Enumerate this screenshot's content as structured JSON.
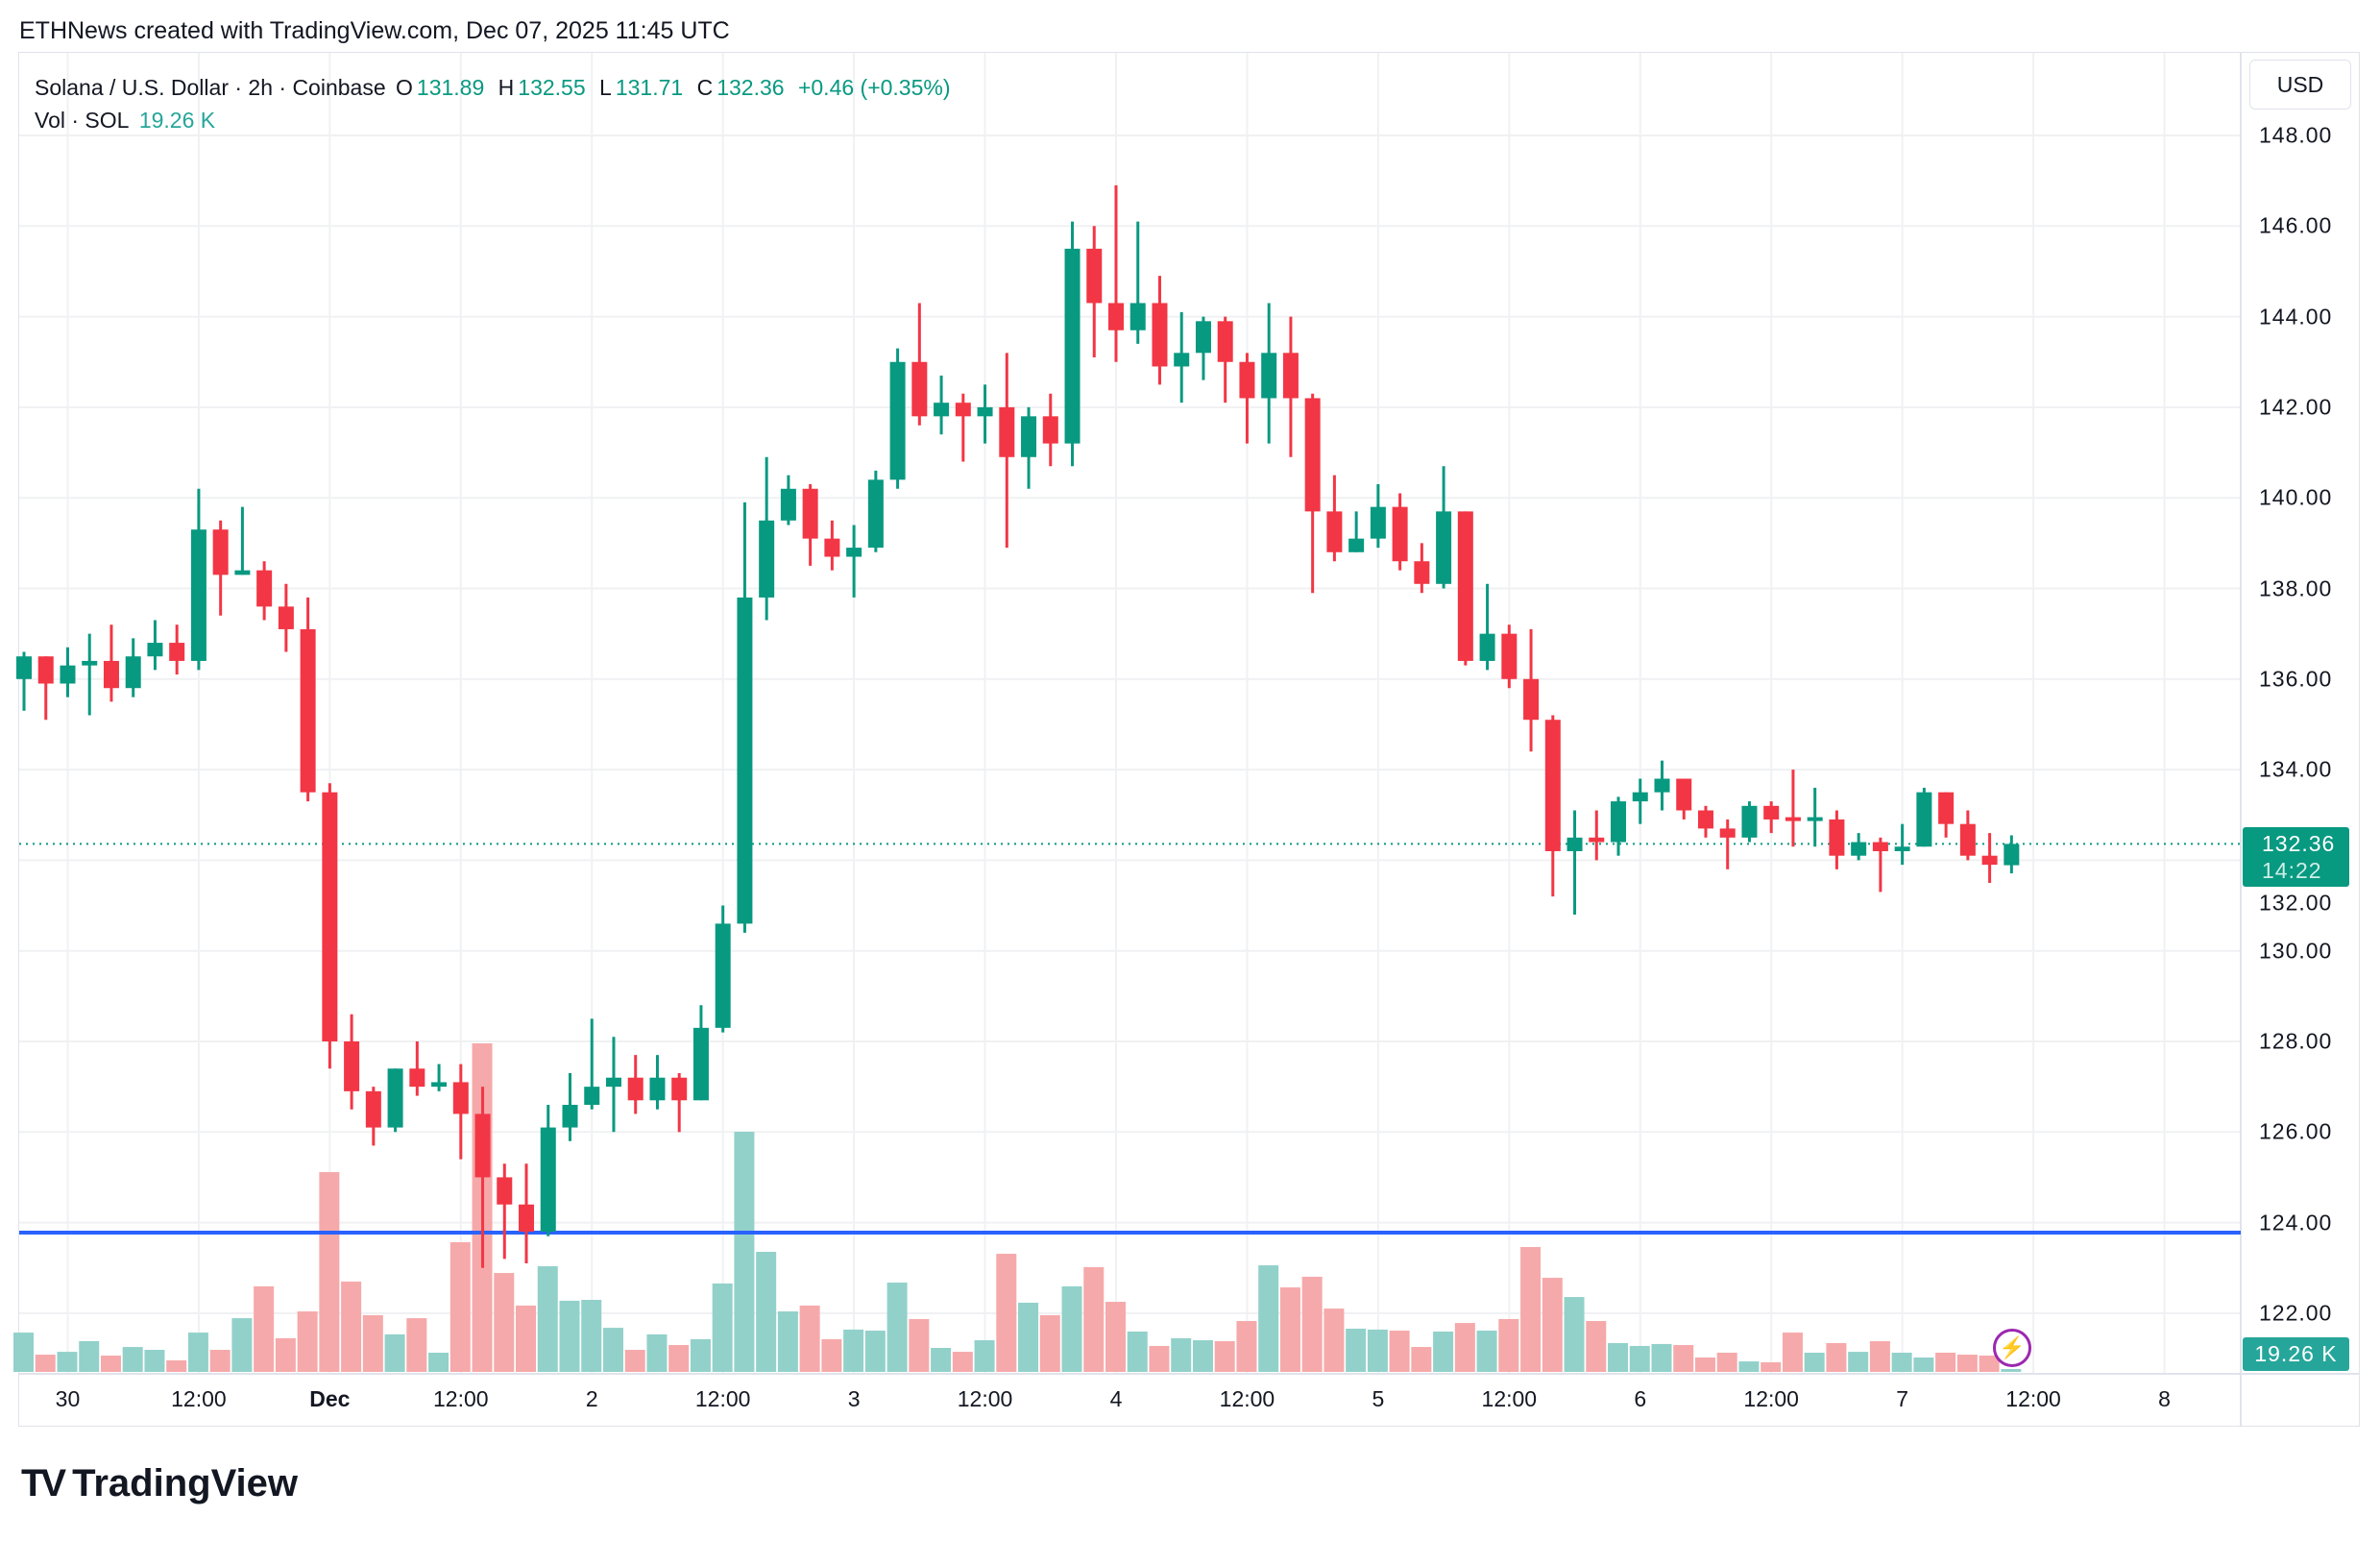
{
  "credit": "ETHNews created with TradingView.com, Dec 07, 2025 11:45 UTC",
  "legend": {
    "symbol": "Solana / U.S. Dollar · 2h · Coinbase",
    "o_label": "O",
    "o": "131.89",
    "h_label": "H",
    "h": "132.55",
    "l_label": "L",
    "l": "131.71",
    "c_label": "C",
    "c": "132.36",
    "change": "+0.46 (+0.35%)",
    "vol_label": "Vol · SOL",
    "vol": "19.26 K"
  },
  "currency_button": "USD",
  "current_price": {
    "price": "132.36",
    "countdown": "14:22"
  },
  "current_volume": "19.26 K",
  "brand": "TradingView",
  "colors": {
    "up": "#089981",
    "down": "#f23645",
    "vol_up": "#92d1ca",
    "vol_down": "#f6a9aa",
    "support_line": "#2962ff",
    "grid": "#f0f1f3"
  },
  "chart_data": {
    "type": "candlestick",
    "title": "Solana / U.S. Dollar · 2h · Coinbase",
    "ylim": [
      121,
      149
    ],
    "y_ticks": [
      "148.00",
      "146.00",
      "144.00",
      "142.00",
      "140.00",
      "138.00",
      "136.00",
      "134.00",
      "132.00",
      "130.00",
      "128.00",
      "126.00",
      "124.00",
      "122.00"
    ],
    "x_ticks": [
      {
        "label": "30",
        "bold": false
      },
      {
        "label": "12:00",
        "bold": false
      },
      {
        "label": "Dec",
        "bold": true
      },
      {
        "label": "12:00",
        "bold": false
      },
      {
        "label": "2",
        "bold": false
      },
      {
        "label": "12:00",
        "bold": false
      },
      {
        "label": "3",
        "bold": false
      },
      {
        "label": "12:00",
        "bold": false
      },
      {
        "label": "4",
        "bold": false
      },
      {
        "label": "12:00",
        "bold": false
      },
      {
        "label": "5",
        "bold": false
      },
      {
        "label": "12:00",
        "bold": false
      },
      {
        "label": "6",
        "bold": false
      },
      {
        "label": "12:00",
        "bold": false
      },
      {
        "label": "7",
        "bold": false
      },
      {
        "label": "12:00",
        "bold": false
      },
      {
        "label": "8",
        "bold": false
      }
    ],
    "first_candle_offset_from_first_tick": -2,
    "candles_per_tick": 6,
    "support_level": 123.78,
    "last_price": 132.36,
    "ohlc": [
      [
        136.0,
        136.6,
        135.3,
        136.5
      ],
      [
        136.5,
        136.5,
        135.1,
        135.9
      ],
      [
        135.9,
        136.7,
        135.6,
        136.3
      ],
      [
        136.3,
        137.0,
        135.2,
        136.4
      ],
      [
        136.4,
        137.2,
        135.5,
        135.8
      ],
      [
        135.8,
        136.9,
        135.6,
        136.5
      ],
      [
        136.5,
        137.3,
        136.2,
        136.8
      ],
      [
        136.8,
        137.2,
        136.1,
        136.4
      ],
      [
        136.4,
        140.2,
        136.2,
        139.3
      ],
      [
        139.3,
        139.5,
        137.4,
        138.3
      ],
      [
        138.3,
        139.8,
        138.3,
        138.4
      ],
      [
        138.4,
        138.6,
        137.3,
        137.6
      ],
      [
        137.6,
        138.1,
        136.6,
        137.1
      ],
      [
        137.1,
        137.8,
        133.3,
        133.5
      ],
      [
        133.5,
        133.7,
        127.4,
        128.0
      ],
      [
        128.0,
        128.6,
        126.5,
        126.9
      ],
      [
        126.9,
        127.0,
        125.7,
        126.1
      ],
      [
        126.1,
        127.4,
        126.0,
        127.4
      ],
      [
        127.4,
        128.0,
        126.8,
        127.0
      ],
      [
        127.0,
        127.5,
        126.9,
        127.1
      ],
      [
        127.1,
        127.5,
        125.4,
        126.4
      ],
      [
        126.4,
        127.0,
        123.0,
        125.0
      ],
      [
        125.0,
        125.3,
        123.2,
        124.4
      ],
      [
        124.4,
        125.3,
        123.1,
        123.8
      ],
      [
        123.8,
        126.6,
        123.7,
        126.1
      ],
      [
        126.1,
        127.3,
        125.8,
        126.6
      ],
      [
        126.6,
        128.5,
        126.5,
        127.0
      ],
      [
        127.0,
        128.1,
        126.0,
        127.2
      ],
      [
        127.2,
        127.7,
        126.4,
        126.7
      ],
      [
        126.7,
        127.7,
        126.5,
        127.2
      ],
      [
        127.2,
        127.3,
        126.0,
        126.7
      ],
      [
        126.7,
        128.8,
        126.7,
        128.3
      ],
      [
        128.3,
        131.0,
        128.2,
        130.6
      ],
      [
        130.6,
        139.9,
        130.4,
        137.8
      ],
      [
        137.8,
        140.9,
        137.3,
        139.5
      ],
      [
        139.5,
        140.5,
        139.4,
        140.2
      ],
      [
        140.2,
        140.3,
        138.5,
        139.1
      ],
      [
        139.1,
        139.5,
        138.4,
        138.7
      ],
      [
        138.7,
        139.4,
        137.8,
        138.9
      ],
      [
        138.9,
        140.6,
        138.8,
        140.4
      ],
      [
        140.4,
        143.3,
        140.2,
        143.0
      ],
      [
        143.0,
        144.3,
        141.6,
        141.8
      ],
      [
        141.8,
        142.7,
        141.4,
        142.1
      ],
      [
        142.1,
        142.3,
        140.8,
        141.8
      ],
      [
        141.8,
        142.5,
        141.2,
        142.0
      ],
      [
        142.0,
        143.2,
        138.9,
        140.9
      ],
      [
        140.9,
        142.0,
        140.2,
        141.8
      ],
      [
        141.8,
        142.3,
        140.7,
        141.2
      ],
      [
        141.2,
        146.1,
        140.7,
        145.5
      ],
      [
        145.5,
        146.0,
        143.1,
        144.3
      ],
      [
        144.3,
        146.9,
        143.0,
        143.7
      ],
      [
        143.7,
        146.1,
        143.4,
        144.3
      ],
      [
        144.3,
        144.9,
        142.5,
        142.9
      ],
      [
        142.9,
        144.1,
        142.1,
        143.2
      ],
      [
        143.2,
        144.0,
        142.6,
        143.9
      ],
      [
        143.9,
        144.0,
        142.1,
        143.0
      ],
      [
        143.0,
        143.2,
        141.2,
        142.2
      ],
      [
        142.2,
        144.3,
        141.2,
        143.2
      ],
      [
        143.2,
        144.0,
        140.9,
        142.2
      ],
      [
        142.2,
        142.3,
        137.9,
        139.7
      ],
      [
        139.7,
        140.5,
        138.6,
        138.8
      ],
      [
        138.8,
        139.7,
        138.8,
        139.1
      ],
      [
        139.1,
        140.3,
        138.9,
        139.8
      ],
      [
        139.8,
        140.1,
        138.4,
        138.6
      ],
      [
        138.6,
        139.0,
        137.9,
        138.1
      ],
      [
        138.1,
        140.7,
        138.0,
        139.7
      ],
      [
        139.7,
        139.7,
        136.3,
        136.4
      ],
      [
        136.4,
        138.1,
        136.2,
        137.0
      ],
      [
        137.0,
        137.2,
        135.8,
        136.0
      ],
      [
        136.0,
        137.1,
        134.4,
        135.1
      ],
      [
        135.1,
        135.2,
        131.2,
        132.2
      ],
      [
        132.2,
        133.1,
        130.8,
        132.5
      ],
      [
        132.5,
        133.1,
        132.0,
        132.4
      ],
      [
        132.4,
        133.4,
        132.1,
        133.3
      ],
      [
        133.3,
        133.8,
        132.8,
        133.5
      ],
      [
        133.5,
        134.2,
        133.1,
        133.8
      ],
      [
        133.8,
        133.8,
        132.9,
        133.1
      ],
      [
        133.1,
        133.2,
        132.5,
        132.7
      ],
      [
        132.7,
        132.9,
        131.8,
        132.5
      ],
      [
        132.5,
        133.3,
        132.4,
        133.2
      ],
      [
        133.2,
        133.3,
        132.6,
        132.9
      ],
      [
        132.95,
        134.0,
        132.3,
        132.9
      ],
      [
        132.9,
        133.6,
        132.3,
        132.95
      ],
      [
        132.9,
        133.1,
        131.8,
        132.1
      ],
      [
        132.1,
        132.6,
        132.0,
        132.4
      ],
      [
        132.4,
        132.5,
        131.3,
        132.2
      ],
      [
        132.2,
        132.8,
        131.9,
        132.3
      ],
      [
        132.3,
        133.6,
        132.3,
        133.5
      ],
      [
        133.5,
        133.5,
        132.5,
        132.8
      ],
      [
        132.8,
        133.1,
        132.0,
        132.1
      ],
      [
        132.1,
        132.6,
        131.5,
        131.9
      ],
      [
        131.89,
        132.55,
        131.71,
        132.36
      ]
    ],
    "volume_unit": "K SOL",
    "volume": [
      262,
      115,
      134,
      205,
      109,
      166,
      147,
      77,
      262,
      147,
      358,
      570,
      224,
      403,
      1331,
      602,
      378,
      250,
      358,
      128,
      864,
      2189,
      659,
      442,
      704,
      474,
      480,
      294,
      147,
      250,
      179,
      218,
      589,
      1600,
      800,
      403,
      442,
      218,
      282,
      275,
      595,
      352,
      160,
      134,
      211,
      787,
      461,
      378,
      570,
      698,
      467,
      269,
      173,
      224,
      211,
      205,
      339,
      710,
      563,
      634,
      422,
      288,
      282,
      275,
      166,
      269,
      326,
      275,
      352,
      832,
      627,
      499,
      339,
      192,
      173,
      186,
      179,
      96,
      128,
      70,
      64,
      262,
      128,
      192,
      134,
      205,
      128,
      96,
      128,
      115,
      109,
      19.26
    ]
  }
}
